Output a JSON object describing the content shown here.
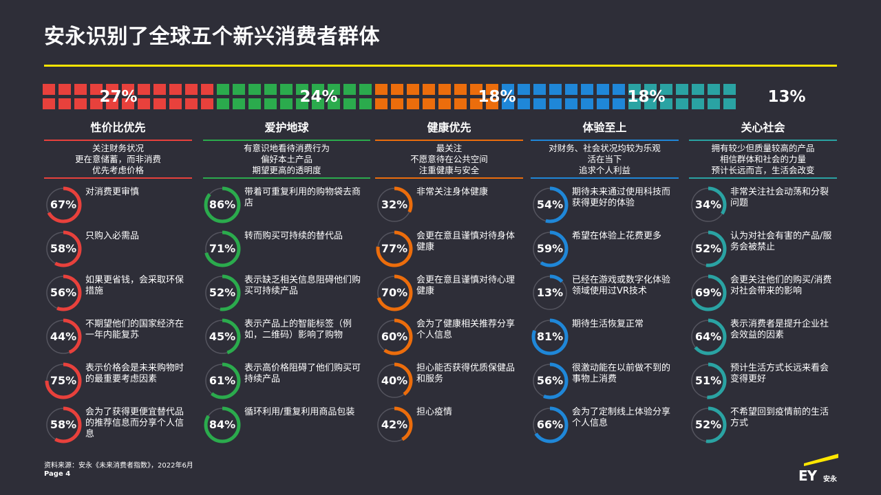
{
  "title": "安永识别了全球五个新兴消费者群体",
  "colors": {
    "accent": "#ffe600",
    "track": "#55555f",
    "segments": [
      "#e8413c",
      "#2bab4d",
      "#ec6d0c",
      "#1f87d8",
      "#2aa3a3"
    ]
  },
  "segments": [
    {
      "share": "27%",
      "name": "性价比优先",
      "desc": "关注财务状况\n更在意储蓄，而非消费\n优先考虑价格",
      "stats": [
        {
          "value": 67,
          "label": "67%",
          "text": "对消费更审慎"
        },
        {
          "value": 58,
          "label": "58%",
          "text": "只购入必需品"
        },
        {
          "value": 56,
          "label": "56%",
          "text": "如果更省钱，会采取环保措施"
        },
        {
          "value": 44,
          "label": "44%",
          "text": "不期望他们的国家经济在一年内能复苏"
        },
        {
          "value": 75,
          "label": "75%",
          "text": "表示价格会是未来购物时的最重要考虑因素"
        },
        {
          "value": 58,
          "label": "58%",
          "text": "会为了获得更便宜替代品的推荐信息而分享个人信息"
        }
      ]
    },
    {
      "share": "24%",
      "name": "爱护地球",
      "desc": "有意识地看待消费行为\n偏好本土产品\n期望更高的透明度",
      "stats": [
        {
          "value": 86,
          "label": "86%",
          "text": "带着可重复利用的购物袋去商店"
        },
        {
          "value": 71,
          "label": "71%",
          "text": "转而购买可持续的替代品"
        },
        {
          "value": 52,
          "label": "52%",
          "text": "表示缺乏相关信息阻碍他们购买可持续产品"
        },
        {
          "value": 45,
          "label": "45%",
          "text": "表示产品上的智能标签（例如，二维码）影响了购物"
        },
        {
          "value": 61,
          "label": "61%",
          "text": "表示高价格阻碍了他们购买可持续产品"
        },
        {
          "value": 84,
          "label": "84%",
          "text": "循环利用/重复利用商品包装"
        }
      ]
    },
    {
      "share": "18%",
      "name": "健康优先",
      "desc": "最关注\n不愿意待在公共空间\n注重健康与安全",
      "stats": [
        {
          "value": 32,
          "label": "32%",
          "text": "非常关注身体健康"
        },
        {
          "value": 77,
          "label": "77%",
          "text": "会更在意且谨慎对待身体健康"
        },
        {
          "value": 70,
          "label": "70%",
          "text": "会更在意且谨慎对待心理健康"
        },
        {
          "value": 60,
          "label": "60%",
          "text": "会为了健康相关推荐分享个人信息"
        },
        {
          "value": 40,
          "label": "40%",
          "text": "担心能否获得优质保健品和服务"
        },
        {
          "value": 42,
          "label": "42%",
          "text": "担心疫情"
        }
      ]
    },
    {
      "share": "18%",
      "name": "体验至上",
      "desc": "对财务、社会状况均较为乐观\n活在当下\n追求个人利益",
      "stats": [
        {
          "value": 54,
          "label": "54%",
          "text": "期待未来通过使用科技而获得更好的体验"
        },
        {
          "value": 59,
          "label": "59%",
          "text": "希望在体验上花费更多"
        },
        {
          "value": 13,
          "label": "13%",
          "text": "已经在游戏或数字化体验领域使用过VR技术"
        },
        {
          "value": 81,
          "label": "81%",
          "text": "期待生活恢复正常"
        },
        {
          "value": 56,
          "label": "56%",
          "text": "很激动能在以前做不到的事物上消费"
        },
        {
          "value": 66,
          "label": "66%",
          "text": "会为了定制线上体验分享个人信息"
        }
      ]
    },
    {
      "share": "13%",
      "name": "关心社会",
      "desc": "拥有较少但质量较高的产品\n相信群体和社会的力量\n预计长远而言，生活会改变",
      "stats": [
        {
          "value": 34,
          "label": "34%",
          "text": "非常关注社会动荡和分裂问题"
        },
        {
          "value": 52,
          "label": "52%",
          "text": "认为对社会有害的产品/服务会被禁止"
        },
        {
          "value": 69,
          "label": "69%",
          "text": "会更关注他们的购买/消费对社会带来的影响"
        },
        {
          "value": 64,
          "label": "64%",
          "text": "表示消费者是提升企业社会效益的因素"
        },
        {
          "value": 51,
          "label": "51%",
          "text": "预计生活方式长远来看会变得更好"
        },
        {
          "value": 52,
          "label": "52%",
          "text": "不希望回到疫情前的生活方式"
        }
      ]
    }
  ],
  "footer": {
    "source": "资料来源：安永《未来消费者指数》，2022年6月",
    "page": "Page 4",
    "logo_text": "EY安永"
  }
}
